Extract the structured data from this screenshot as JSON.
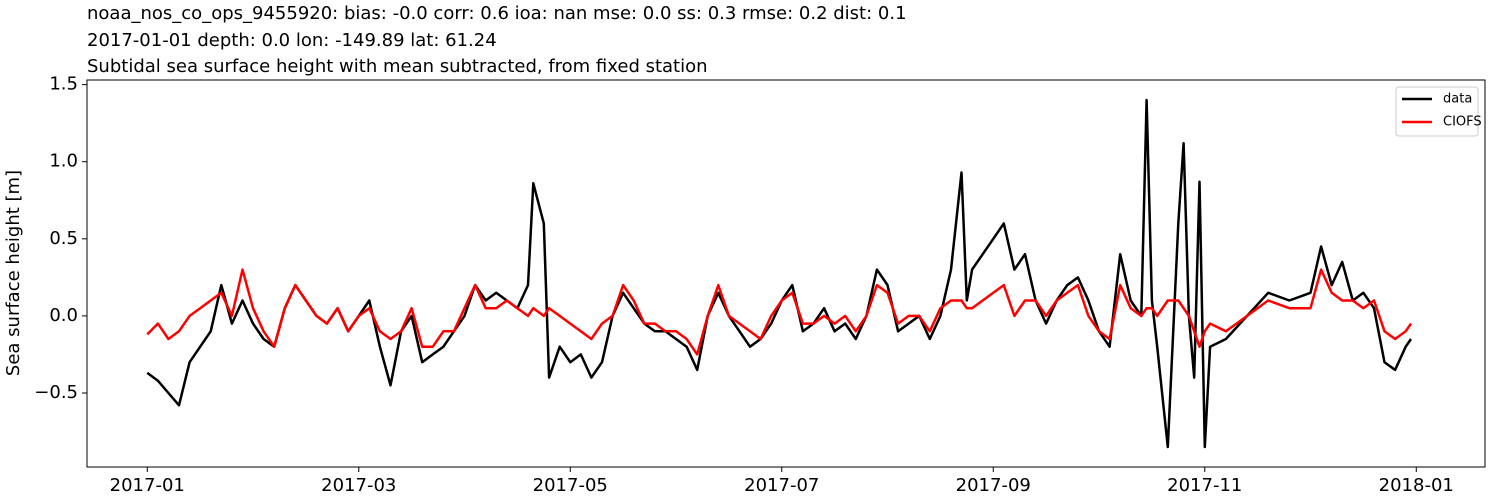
{
  "chart_data": {
    "type": "line",
    "title": "noaa_nos_co_ops_9455920: bias: -0.0  corr: 0.6  ioa: nan  mse: 0.0  ss: 0.3  rmse: 0.2  dist: 0.1",
    "subtitle": "2017-01-01 depth: 0.0 lon: -149.89 lat: 61.24",
    "subtitle2": "Subtidal sea surface height with mean subtracted, from fixed station",
    "y_label": "Sea surface height [m]",
    "x": [
      0.0,
      0.1,
      0.2,
      0.3,
      0.4,
      0.5,
      0.6,
      0.7,
      0.8,
      0.9,
      1.0,
      1.1,
      1.2,
      1.3,
      1.4,
      1.5,
      1.6,
      1.7,
      1.8,
      1.9,
      2.0,
      2.1,
      2.2,
      2.3,
      2.4,
      2.5,
      2.6,
      2.7,
      2.8,
      2.9,
      3.0,
      3.1,
      3.2,
      3.3,
      3.4,
      3.5,
      3.6,
      3.65,
      3.75,
      3.8,
      3.9,
      4.0,
      4.1,
      4.2,
      4.3,
      4.4,
      4.5,
      4.6,
      4.7,
      4.8,
      4.9,
      5.0,
      5.1,
      5.2,
      5.3,
      5.4,
      5.5,
      5.6,
      5.7,
      5.8,
      5.9,
      6.0,
      6.1,
      6.2,
      6.3,
      6.4,
      6.5,
      6.6,
      6.7,
      6.8,
      6.9,
      7.0,
      7.1,
      7.2,
      7.3,
      7.4,
      7.5,
      7.6,
      7.7,
      7.75,
      7.8,
      7.9,
      8.0,
      8.1,
      8.2,
      8.3,
      8.4,
      8.5,
      8.6,
      8.7,
      8.8,
      8.9,
      9.0,
      9.1,
      9.2,
      9.3,
      9.4,
      9.45,
      9.5,
      9.55,
      9.65,
      9.75,
      9.8,
      9.85,
      9.9,
      9.95,
      10.0,
      10.05,
      10.2,
      10.4,
      10.6,
      10.8,
      11.0,
      11.1,
      11.2,
      11.3,
      11.4,
      11.5,
      11.6,
      11.7,
      11.8,
      11.9,
      11.95
    ],
    "series": [
      {
        "name": "data",
        "color": "#000000",
        "values": [
          -0.37,
          -0.42,
          -0.5,
          -0.58,
          -0.3,
          -0.2,
          -0.1,
          0.2,
          -0.05,
          0.1,
          -0.05,
          -0.15,
          -0.2,
          0.05,
          0.2,
          0.1,
          0.0,
          -0.05,
          0.05,
          -0.1,
          0.0,
          0.1,
          -0.2,
          -0.45,
          -0.1,
          0.0,
          -0.3,
          -0.25,
          -0.2,
          -0.1,
          0.0,
          0.2,
          0.1,
          0.15,
          0.1,
          0.05,
          0.2,
          0.86,
          0.6,
          -0.4,
          -0.2,
          -0.3,
          -0.25,
          -0.4,
          -0.3,
          0.0,
          0.15,
          0.05,
          -0.05,
          -0.1,
          -0.1,
          -0.15,
          -0.2,
          -0.35,
          0.0,
          0.15,
          0.0,
          -0.1,
          -0.2,
          -0.15,
          -0.05,
          0.1,
          0.2,
          -0.1,
          -0.05,
          0.05,
          -0.1,
          -0.05,
          -0.15,
          0.0,
          0.3,
          0.2,
          -0.1,
          -0.05,
          0.0,
          -0.15,
          0.0,
          0.3,
          0.93,
          0.1,
          0.3,
          0.4,
          0.5,
          0.6,
          0.3,
          0.4,
          0.1,
          -0.05,
          0.1,
          0.2,
          0.25,
          0.1,
          -0.1,
          -0.2,
          0.4,
          0.1,
          0.0,
          1.4,
          0.1,
          -0.2,
          -0.85,
          0.6,
          1.12,
          0.0,
          -0.4,
          0.87,
          -0.85,
          -0.2,
          -0.15,
          0.0,
          0.15,
          0.1,
          0.15,
          0.45,
          0.2,
          0.35,
          0.1,
          0.15,
          0.05,
          -0.3,
          -0.35,
          -0.2,
          -0.15
        ]
      },
      {
        "name": "CIOFS",
        "color": "#ff0000",
        "values": [
          -0.12,
          -0.05,
          -0.15,
          -0.1,
          0.0,
          0.05,
          0.1,
          0.15,
          0.0,
          0.3,
          0.05,
          -0.1,
          -0.2,
          0.05,
          0.2,
          0.1,
          0.0,
          -0.05,
          0.05,
          -0.1,
          0.0,
          0.05,
          -0.1,
          -0.15,
          -0.1,
          0.05,
          -0.2,
          -0.2,
          -0.1,
          -0.1,
          0.05,
          0.2,
          0.05,
          0.05,
          0.1,
          0.05,
          0.0,
          0.05,
          0.0,
          0.05,
          0.0,
          -0.05,
          -0.1,
          -0.15,
          -0.05,
          0.0,
          0.2,
          0.1,
          -0.05,
          -0.05,
          -0.1,
          -0.1,
          -0.15,
          -0.25,
          0.0,
          0.2,
          0.0,
          -0.05,
          -0.1,
          -0.15,
          0.0,
          0.1,
          0.15,
          -0.05,
          -0.05,
          0.0,
          -0.05,
          0.0,
          -0.1,
          0.0,
          0.2,
          0.15,
          -0.05,
          0.0,
          0.0,
          -0.1,
          0.05,
          0.1,
          0.1,
          0.05,
          0.05,
          0.1,
          0.15,
          0.2,
          0.0,
          0.1,
          0.1,
          0.0,
          0.1,
          0.15,
          0.2,
          0.0,
          -0.1,
          -0.15,
          0.2,
          0.05,
          0.0,
          0.05,
          0.05,
          0.0,
          0.1,
          0.1,
          0.05,
          0.0,
          -0.1,
          -0.2,
          -0.1,
          -0.05,
          -0.1,
          0.0,
          0.1,
          0.05,
          0.05,
          0.3,
          0.15,
          0.1,
          0.1,
          0.05,
          0.1,
          -0.1,
          -0.15,
          -0.1,
          -0.05
        ]
      }
    ],
    "xlim": [
      -0.57,
      12.65
    ],
    "xticks": [
      {
        "value": 0,
        "label": "2017-01"
      },
      {
        "value": 2,
        "label": "2017-03"
      },
      {
        "value": 4,
        "label": "2017-05"
      },
      {
        "value": 6,
        "label": "2017-07"
      },
      {
        "value": 8,
        "label": "2017-09"
      },
      {
        "value": 10,
        "label": "2017-11"
      },
      {
        "value": 12,
        "label": "2018-01"
      }
    ],
    "ylim": [
      -0.98,
      1.53
    ],
    "yticks": [
      {
        "value": -0.5,
        "label": "−0.5"
      },
      {
        "value": 0,
        "label": "0.0"
      },
      {
        "value": 0.5,
        "label": "0.5"
      },
      {
        "value": 1,
        "label": "1.0"
      },
      {
        "value": 1.5,
        "label": "1.5"
      }
    ],
    "legend": "upper right",
    "grid": false
  }
}
